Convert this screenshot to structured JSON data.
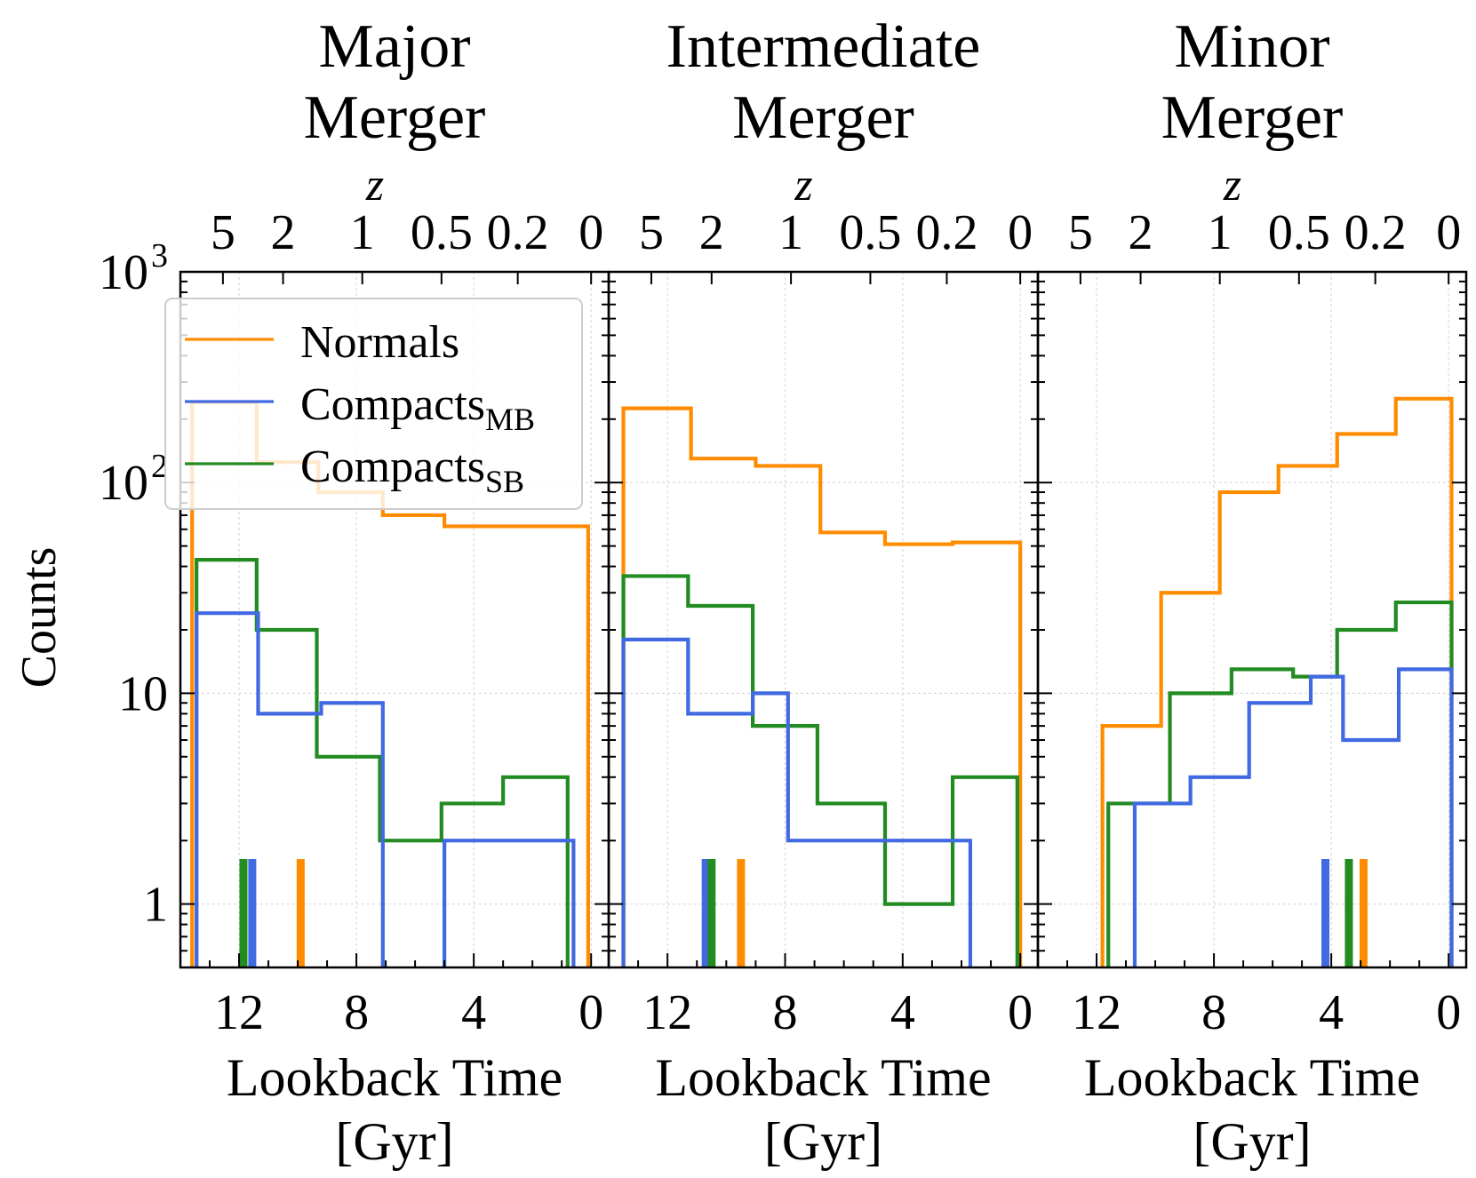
{
  "figure": {
    "ylabel": "Counts",
    "xlabel_line1": "Lookback Time",
    "xlabel_line2": "[Gyr]",
    "top_axis_label": "z",
    "top_ticks": [
      {
        "label": "5",
        "t": 12.55
      },
      {
        "label": "2",
        "t": 10.5
      },
      {
        "label": "1",
        "t": 7.8
      },
      {
        "label": "0.5",
        "t": 5.1
      },
      {
        "label": "0.2",
        "t": 2.5
      },
      {
        "label": "0",
        "t": 0.0
      }
    ],
    "y_ticks": [
      {
        "value": 1,
        "label": "1"
      },
      {
        "value": 10,
        "label": "10"
      },
      {
        "value": 100,
        "label": "10",
        "sup": "2"
      },
      {
        "value": 1000,
        "label": "10",
        "sup": "3"
      }
    ],
    "x_ticks": [
      12,
      8,
      4,
      0
    ],
    "xlim": [
      14.0,
      -0.6
    ],
    "ylim": [
      0.5,
      1000
    ],
    "y_scale": "log",
    "grid": true,
    "colors": {
      "Normals": "#ff8c00",
      "CompactsMB": "#4169e1",
      "CompactsSB": "#228b22"
    },
    "legend": {
      "placement": "upper-left",
      "entries": [
        {
          "key": "Normals",
          "text": "Normals",
          "sub": ""
        },
        {
          "key": "CompactsMB",
          "text": "Compacts",
          "sub": "MB"
        },
        {
          "key": "CompactsSB",
          "text": "Compacts",
          "sub": "SB"
        }
      ]
    }
  },
  "chart_data": [
    {
      "type": "histogram",
      "title_line1": "Major",
      "title_line2": "Merger",
      "series": [
        {
          "name": "Normals",
          "key": "Normals",
          "edges": [
            13.6,
            11.4,
            9.3,
            7.1,
            5.0,
            2.9,
            0.1
          ],
          "counts": [
            240,
            125,
            90,
            70,
            62,
            62
          ],
          "median": 9.9
        },
        {
          "name": "CompactsMB",
          "key": "CompactsMB",
          "edges": [
            13.45,
            11.35,
            9.2,
            7.1,
            5.0,
            2.9,
            0.6
          ],
          "counts": [
            24,
            8,
            9,
            0.1,
            2,
            2
          ],
          "median": 11.55
        },
        {
          "name": "CompactsSB",
          "key": "CompactsSB",
          "edges": [
            13.45,
            11.4,
            9.35,
            7.2,
            5.1,
            3.0,
            0.8
          ],
          "counts": [
            43,
            20,
            5,
            2,
            3,
            4
          ],
          "median": 11.85
        }
      ]
    },
    {
      "type": "histogram",
      "title_line1": "Intermediate",
      "title_line2": "Merger",
      "series": [
        {
          "name": "Normals",
          "key": "Normals",
          "edges": [
            13.5,
            11.2,
            9.0,
            6.8,
            4.6,
            2.3,
            0.0
          ],
          "counts": [
            225,
            130,
            120,
            58,
            51,
            52
          ],
          "median": 9.5
        },
        {
          "name": "CompactsMB",
          "key": "CompactsMB",
          "edges": [
            13.5,
            11.3,
            9.1,
            7.9,
            6.7,
            4.3,
            1.7
          ],
          "counts": [
            18,
            8,
            10,
            2,
            2,
            2
          ],
          "median": 10.7
        },
        {
          "name": "CompactsSB",
          "key": "CompactsSB",
          "edges": [
            13.5,
            11.3,
            9.1,
            6.9,
            4.6,
            2.3,
            0.1
          ],
          "counts": [
            36,
            26,
            7,
            3,
            1,
            4
          ],
          "median": 10.5
        }
      ]
    },
    {
      "type": "histogram",
      "title_line1": "Minor",
      "title_line2": "Merger",
      "series": [
        {
          "name": "Normals",
          "key": "Normals",
          "edges": [
            11.8,
            9.8,
            7.8,
            5.8,
            3.8,
            1.8,
            -0.1
          ],
          "counts": [
            7,
            30,
            90,
            120,
            170,
            250
          ],
          "median": 2.9
        },
        {
          "name": "CompactsMB",
          "key": "CompactsMB",
          "edges": [
            10.7,
            8.8,
            6.8,
            4.7,
            3.6,
            1.7,
            -0.1
          ],
          "counts": [
            3,
            4,
            9,
            12,
            6,
            13
          ],
          "median": 4.2
        },
        {
          "name": "CompactsSB",
          "key": "CompactsSB",
          "edges": [
            11.6,
            9.5,
            7.4,
            5.3,
            3.8,
            1.8,
            -0.1
          ],
          "counts": [
            3,
            10,
            13,
            12,
            20,
            27
          ],
          "median": 3.4
        }
      ]
    }
  ]
}
